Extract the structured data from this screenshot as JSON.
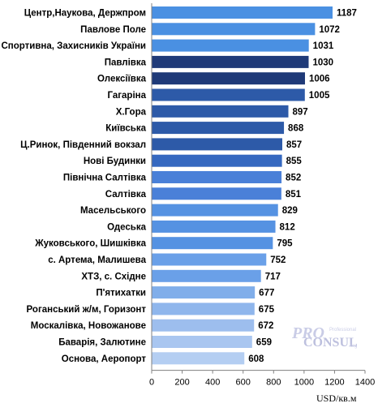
{
  "chart_data": {
    "type": "bar",
    "orientation": "horizontal",
    "categories": [
      "Центр,Наукова,  Держпром",
      "Павлове Поле",
      "Спортивна, Захисників  України",
      "Павлівка",
      "Олексіївка",
      "Гагаріна",
      "Х.Гора",
      "Київська",
      "Ц.Ринок, Південний вокзал",
      "Нові Будинки",
      "Північна Салтівка",
      "Салтівка",
      "Масельського",
      "Одеська",
      "Жуковського, Шишківка",
      "с. Артема, Малишева",
      "ХТЗ, с. Східне",
      "П'ятихатки",
      "Роганський ж/м, Горизонт",
      "Москалівка,  Новожанове",
      "Баварія, Залютине",
      "Основа, Аеропорт"
    ],
    "values": [
      1187,
      1072,
      1031,
      1030,
      1006,
      1005,
      897,
      868,
      857,
      855,
      852,
      851,
      829,
      812,
      795,
      752,
      717,
      677,
      675,
      672,
      659,
      608
    ],
    "bar_colors": [
      "#4a90e2",
      "#4a90e2",
      "#4a90e2",
      "#1f3a78",
      "#1f3a78",
      "#2d5aa8",
      "#2d5aa8",
      "#2d5aa8",
      "#2d5aa8",
      "#3568c0",
      "#4a80d8",
      "#4a80d8",
      "#5592e2",
      "#5592e2",
      "#5592e2",
      "#6aa0e8",
      "#6aa0e8",
      "#80aeea",
      "#8fb6ec",
      "#9dbeee",
      "#a9c6f0",
      "#b4cef2"
    ],
    "xlim": [
      0,
      1400
    ],
    "x_ticks": [
      "0",
      "200",
      "400",
      "600",
      "800",
      "1000",
      "1200",
      "1400"
    ],
    "xlabel": "USD/кв.м",
    "grid": false
  },
  "logo": {
    "pro": "PRO",
    "professional": "Professional",
    "consul": "CONSUL",
    "org": ".org"
  }
}
